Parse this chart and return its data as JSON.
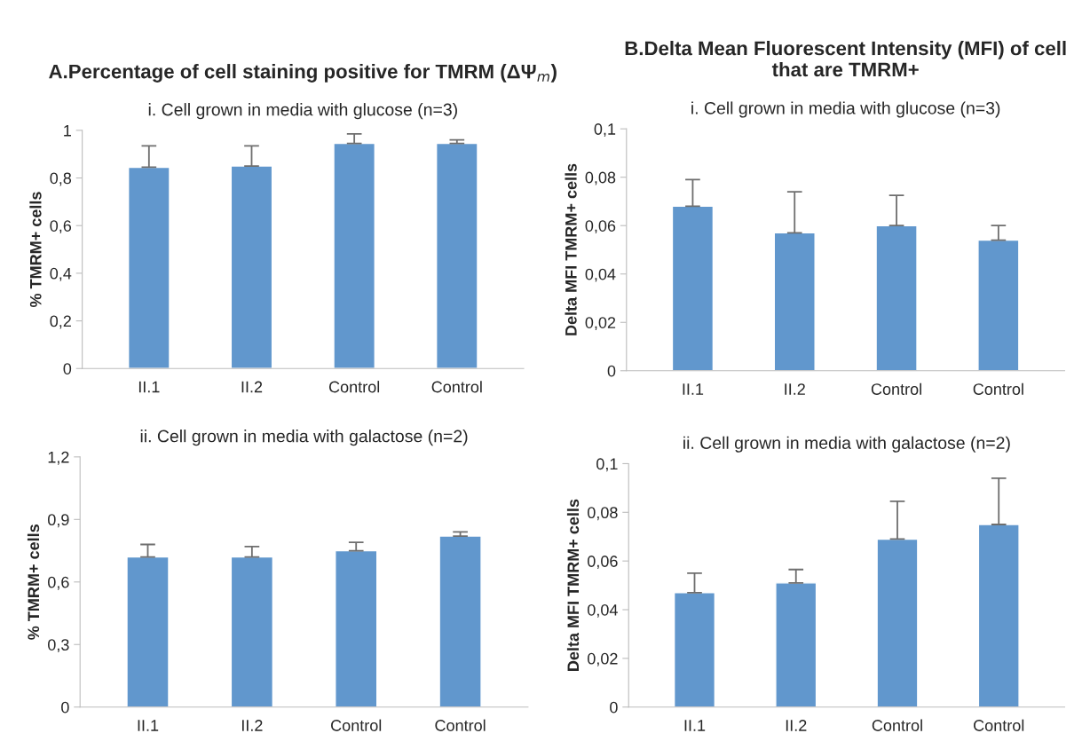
{
  "chart_data": [
    {
      "type": "bar",
      "title": "A.Percentage of cell staining positive for TMRM (ΔΨ$_{m}$)",
      "subtitle": "i. Cell grown in media with glucose (n=3)",
      "ylabel": "% TMRM+ cells",
      "categories": [
        "II.1",
        "II.2",
        "Control",
        "Control"
      ],
      "color": "#6197cd",
      "values": [
        0.845,
        0.85,
        0.945,
        0.945
      ],
      "errors": [
        [
          0.845,
          0.935
        ],
        [
          0.85,
          0.935
        ],
        [
          0.945,
          0.985
        ],
        [
          0.945,
          0.96
        ]
      ],
      "ylim": [
        0,
        1
      ],
      "yticks": [
        0,
        {
          "value": 0.2,
          "label": "0,2"
        },
        {
          "value": 0.4,
          "label": "0,4"
        },
        {
          "value": 0.6,
          "label": "0,6"
        },
        {
          "value": 0.8,
          "label": "0,8"
        },
        1
      ]
    },
    {
      "type": "bar",
      "title": "B.Delta Mean Fluorescent Intensity (MFI) of cell that are TMRM+",
      "subtitle": "i. Cell grown in media with glucose (n=3)",
      "ylabel": "Delta MFI TMRM+ cells",
      "categories": [
        "II.1",
        "II.2",
        "Control",
        "Control"
      ],
      "color": "#6197cd",
      "values": [
        0.068,
        0.057,
        0.06,
        0.054
      ],
      "errors": [
        [
          0.068,
          0.079
        ],
        [
          0.057,
          0.074
        ],
        [
          0.06,
          0.0725
        ],
        [
          0.054,
          0.06
        ]
      ],
      "ylim": [
        0,
        0.1
      ],
      "yticks": [
        0,
        {
          "value": 0.02,
          "label": "0,02"
        },
        {
          "value": 0.04,
          "label": "0,04"
        },
        {
          "value": 0.06,
          "label": "0,06"
        },
        {
          "value": 0.08,
          "label": "0,08"
        },
        {
          "value": 0.1,
          "label": "0,1"
        }
      ]
    },
    {
      "type": "bar",
      "subtitle": "ii. Cell grown in media with galactose (n=2)",
      "ylabel": "% TMRM+ cells",
      "categories": [
        "II.1",
        "II.2",
        "Control",
        "Control"
      ],
      "color": "#6197cd",
      "values": [
        0.72,
        0.72,
        0.75,
        0.82
      ],
      "errors": [
        [
          0.72,
          0.78
        ],
        [
          0.72,
          0.77
        ],
        [
          0.75,
          0.79
        ],
        [
          0.82,
          0.84
        ]
      ],
      "ylim": [
        0,
        1.2
      ],
      "yticks": [
        0,
        {
          "value": 0.3,
          "label": "0,3"
        },
        {
          "value": 0.6,
          "label": "0,6"
        },
        {
          "value": 0.9,
          "label": "0,9"
        },
        {
          "value": 1.2,
          "label": "1,2"
        }
      ]
    },
    {
      "type": "bar",
      "subtitle": "ii. Cell grown in media with galactose (n=2)",
      "ylabel": "Delta MFI TMRM+ cells",
      "categories": [
        "II.1",
        "II.2",
        "Control",
        "Control"
      ],
      "color": "#6197cd",
      "values": [
        0.047,
        0.051,
        0.069,
        0.075
      ],
      "errors": [
        [
          0.047,
          0.055
        ],
        [
          0.051,
          0.0565
        ],
        [
          0.069,
          0.0845
        ],
        [
          0.075,
          0.094
        ]
      ],
      "ylim": [
        0,
        0.1
      ],
      "yticks": [
        0,
        {
          "value": 0.02,
          "label": "0,02"
        },
        {
          "value": 0.04,
          "label": "0,04"
        },
        {
          "value": 0.06,
          "label": "0,06"
        },
        {
          "value": 0.08,
          "label": "0,08"
        },
        {
          "value": 0.1,
          "label": "0,1"
        }
      ]
    }
  ]
}
